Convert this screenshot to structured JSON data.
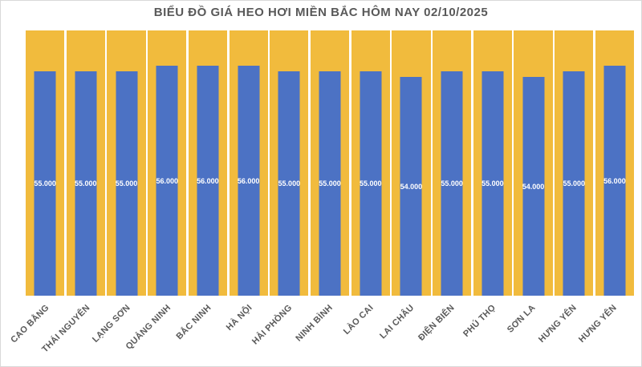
{
  "chart_data": {
    "type": "bar",
    "title": "BIỂU ĐỒ GIÁ HEO HƠI MIỀN BẮC HÔM NAY 02/10/2025",
    "categories": [
      "CAO BẰNG",
      "THÁI NGUYÊN",
      "LẠNG SƠN",
      "QUẢNG NINH",
      "BẮC NINH",
      "HÀ NỘI",
      "HẢI PHÒNG",
      "NINH BÌNH",
      "LÀO CAI",
      "LAI CHÂU",
      "ĐIỆN BIÊN",
      "PHÚ THỌ",
      "SƠN LA",
      "HƯNG YÊN",
      "HƯNG YÊN"
    ],
    "values": [
      55000,
      55000,
      55000,
      56000,
      56000,
      56000,
      55000,
      55000,
      55000,
      54000,
      55000,
      55000,
      54000,
      55000,
      56000
    ],
    "value_labels": [
      "55.000",
      "55.000",
      "55.000",
      "56.000",
      "56.000",
      "56.000",
      "55.000",
      "55.000",
      "55.000",
      "54.000",
      "55.000",
      "55.000",
      "54.000",
      "55.000",
      "56.000"
    ],
    "xlabel": "",
    "ylabel": "",
    "legend": "none",
    "grid": "off",
    "axis_ticks_visible": false,
    "colors": {
      "bar": "#4C72C4",
      "background_column": "#F1BB3D",
      "value_label_text": "#FFFFFF",
      "axis_label_text": "#595959",
      "title_text": "#595959",
      "frame_border": "#D9D9D9"
    }
  }
}
